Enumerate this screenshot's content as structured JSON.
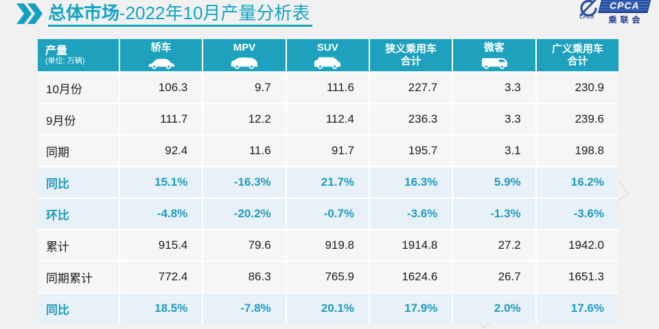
{
  "page": {
    "title_bold": "总体市场",
    "title_rest": "-2022年10月产量分析表"
  },
  "logo": {
    "box_text": "CPCA",
    "emblem_caption": "CPCA",
    "sub_text": "乘联会",
    "brand_blue": "#2350a8"
  },
  "colors": {
    "accent_teal": "#1ea1bd",
    "title_teal": "#12a3c5",
    "percent_teal": "#1e9bbe",
    "highlight_row": "#e9f1f8",
    "plain_row": "#f6f6f6",
    "page_bg": "#f1f1f1"
  },
  "watermark": {
    "text": "CPCA"
  },
  "table": {
    "corner": {
      "label": "产量",
      "unit_note": "(单位: 万辆)"
    },
    "columns": [
      {
        "label": "轿车",
        "label2": "",
        "icon": "sedan-icon"
      },
      {
        "label": "MPV",
        "label2": "",
        "icon": "mpv-icon"
      },
      {
        "label": "SUV",
        "label2": "",
        "icon": "suv-icon"
      },
      {
        "label": "狭义乘用车",
        "label2": "合计",
        "icon": ""
      },
      {
        "label": "微客",
        "label2": "",
        "icon": "microvan-icon"
      },
      {
        "label": "广义乘用车",
        "label2": "合计",
        "icon": ""
      }
    ],
    "rows": [
      {
        "label": "10月份",
        "highlight": false,
        "values": [
          "106.3",
          "9.7",
          "111.6",
          "227.7",
          "3.3",
          "230.9"
        ]
      },
      {
        "label": "9月份",
        "highlight": false,
        "values": [
          "111.7",
          "12.2",
          "112.4",
          "236.3",
          "3.3",
          "239.6"
        ]
      },
      {
        "label": "同期",
        "highlight": false,
        "values": [
          "92.4",
          "11.6",
          "91.7",
          "195.7",
          "3.1",
          "198.8"
        ]
      },
      {
        "label": "同比",
        "highlight": true,
        "values": [
          "15.1%",
          "-16.3%",
          "21.7%",
          "16.3%",
          "5.9%",
          "16.2%"
        ]
      },
      {
        "label": "环比",
        "highlight": true,
        "values": [
          "-4.8%",
          "-20.2%",
          "-0.7%",
          "-3.6%",
          "-1.3%",
          "-3.6%"
        ]
      },
      {
        "label": "累计",
        "highlight": false,
        "values": [
          "915.4",
          "79.6",
          "919.8",
          "1914.8",
          "27.2",
          "1942.0"
        ]
      },
      {
        "label": "同期累计",
        "highlight": false,
        "values": [
          "772.4",
          "86.3",
          "765.9",
          "1624.6",
          "26.7",
          "1651.3"
        ]
      },
      {
        "label": "同比",
        "highlight": true,
        "values": [
          "18.5%",
          "-7.8%",
          "20.1%",
          "17.9%",
          "2.0%",
          "17.6%"
        ]
      }
    ]
  },
  "chart_data": {
    "type": "table",
    "title": "总体市场-2022年10月产量分析表",
    "unit": "万辆",
    "columns": [
      "轿车",
      "MPV",
      "SUV",
      "狭义乘用车合计",
      "微客",
      "广义乘用车合计"
    ],
    "rows": [
      {
        "label": "10月份",
        "values": [
          106.3,
          9.7,
          111.6,
          227.7,
          3.3,
          230.9
        ]
      },
      {
        "label": "9月份",
        "values": [
          111.7,
          12.2,
          112.4,
          236.3,
          3.3,
          239.6
        ]
      },
      {
        "label": "同期",
        "values": [
          92.4,
          11.6,
          91.7,
          195.7,
          3.1,
          198.8
        ]
      },
      {
        "label": "同比",
        "values": [
          "15.1%",
          "-16.3%",
          "21.7%",
          "16.3%",
          "5.9%",
          "16.2%"
        ]
      },
      {
        "label": "环比",
        "values": [
          "-4.8%",
          "-20.2%",
          "-0.7%",
          "-3.6%",
          "-1.3%",
          "-3.6%"
        ]
      },
      {
        "label": "累计",
        "values": [
          915.4,
          79.6,
          919.8,
          1914.8,
          27.2,
          1942.0
        ]
      },
      {
        "label": "同期累计",
        "values": [
          772.4,
          86.3,
          765.9,
          1624.6,
          26.7,
          1651.3
        ]
      },
      {
        "label": "同比",
        "values": [
          "18.5%",
          "-7.8%",
          "20.1%",
          "17.9%",
          "2.0%",
          "17.6%"
        ]
      }
    ]
  }
}
